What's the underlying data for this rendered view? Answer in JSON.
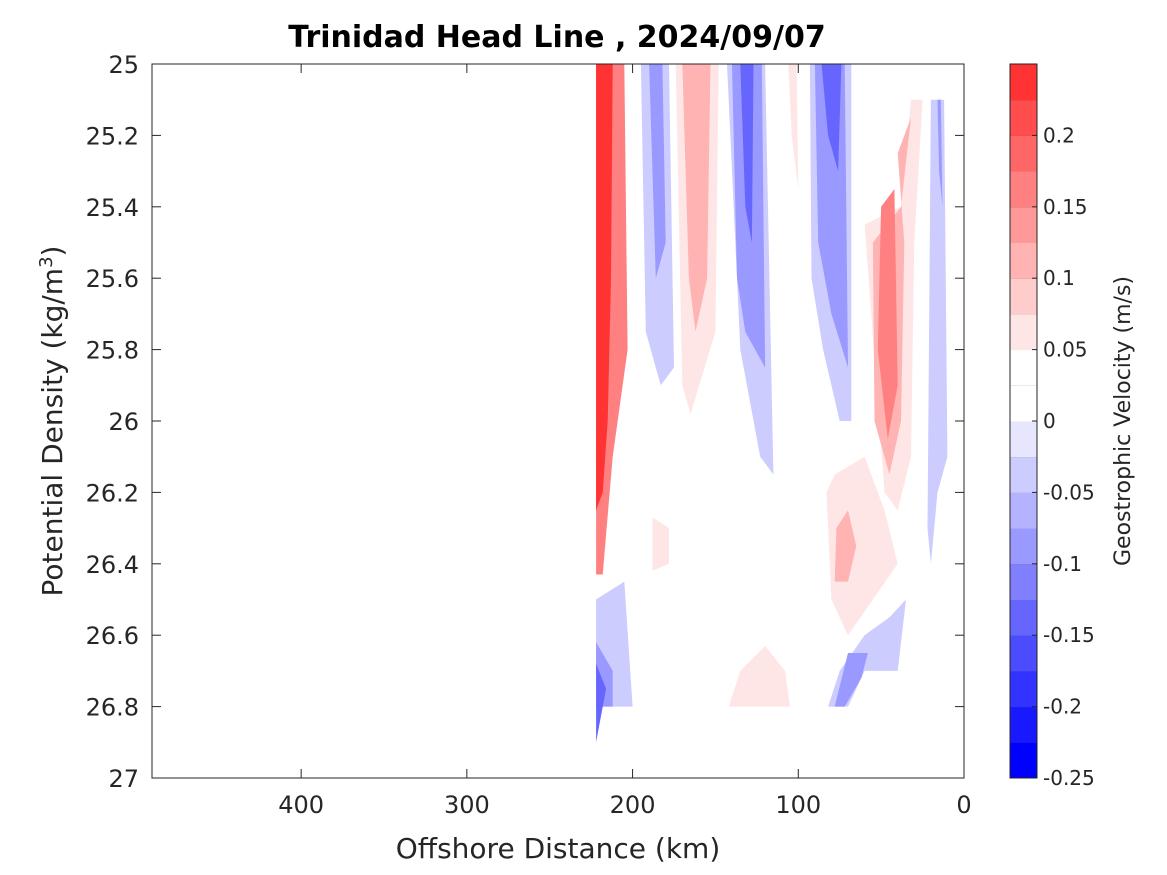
{
  "chart_data": {
    "type": "heatmap",
    "subtype": "filled-contour",
    "title": "Trinidad Head Line , 2024/09/07",
    "xlabel": "Offshore Distance (km)",
    "ylabel_main": "Potential Density (kg/m",
    "ylabel_sup": "3",
    "ylabel_close": ")",
    "x_reversed": true,
    "y_reversed": true,
    "xlim": [
      490,
      0
    ],
    "ylim": [
      25,
      27
    ],
    "xticks": [
      400,
      300,
      200,
      100,
      0
    ],
    "yticks": [
      25,
      25.2,
      25.4,
      25.6,
      25.8,
      26,
      26.2,
      26.4,
      26.6,
      26.8,
      27
    ],
    "colorbar": {
      "title": "Geostrophic Velocity (m/s)",
      "range": [
        -0.25,
        0.25
      ],
      "levels": [
        -0.25,
        -0.225,
        -0.2,
        -0.175,
        -0.15,
        -0.125,
        -0.1,
        -0.075,
        -0.05,
        -0.025,
        0,
        0.025,
        0.05,
        0.075,
        0.1,
        0.125,
        0.15,
        0.175,
        0.2,
        0.225,
        0.25
      ],
      "ticks": [
        0.2,
        0.15,
        0.1,
        0.05,
        0,
        -0.05,
        -0.1,
        -0.15,
        -0.2,
        -0.25
      ],
      "tick_labels": [
        "0.2",
        "0.15",
        "0.1",
        "0.05",
        "0",
        "-0.05",
        "-0.1",
        "-0.15",
        "-0.2",
        "-0.25"
      ],
      "colors": [
        "#0000ff",
        "#1919ff",
        "#3333ff",
        "#4c4cff",
        "#6666ff",
        "#8080ff",
        "#9999ff",
        "#b3b3ff",
        "#ccccff",
        "#e6e6ff",
        "#ffffff",
        "#ffffff",
        "#ffe6e6",
        "#ffcccc",
        "#ffb3b3",
        "#ff9999",
        "#ff8080",
        "#ff6666",
        "#ff4c4c",
        "#ff3333",
        "#ff0000"
      ]
    },
    "regions": [
      {
        "name": "red-core-218km",
        "value": 0.15,
        "points": [
          [
            222,
            25
          ],
          [
            205,
            25
          ],
          [
            203,
            25.8
          ],
          [
            212,
            26.1
          ],
          [
            218,
            26.43
          ],
          [
            222,
            26.43
          ]
        ]
      },
      {
        "name": "red-core-218km-inner",
        "value": 0.225,
        "points": [
          [
            222,
            25
          ],
          [
            212,
            25
          ],
          [
            213,
            25.6
          ],
          [
            215,
            26.0
          ],
          [
            218,
            26.2
          ],
          [
            222,
            26.25
          ]
        ]
      },
      {
        "name": "blue-195-175",
        "value": -0.05,
        "points": [
          [
            195,
            25
          ],
          [
            178,
            25
          ],
          [
            175,
            25.85
          ],
          [
            183,
            25.9
          ],
          [
            192,
            25.75
          ]
        ]
      },
      {
        "name": "blue-195-175-inner",
        "value": -0.1,
        "points": [
          [
            190,
            25
          ],
          [
            182,
            25
          ],
          [
            180,
            25.5
          ],
          [
            186,
            25.6
          ]
        ]
      },
      {
        "name": "red-175-145",
        "value": 0.05,
        "points": [
          [
            174,
            25
          ],
          [
            148,
            25
          ],
          [
            150,
            25.75
          ],
          [
            165,
            25.98
          ],
          [
            170,
            25.9
          ]
        ]
      },
      {
        "name": "red-175-145-inner",
        "value": 0.1,
        "points": [
          [
            170,
            25
          ],
          [
            153,
            25
          ],
          [
            155,
            25.6
          ],
          [
            162,
            25.75
          ],
          [
            166,
            25.6
          ]
        ]
      },
      {
        "name": "blue-140-120",
        "value": -0.05,
        "points": [
          [
            143,
            25
          ],
          [
            120,
            25
          ],
          [
            115,
            26.15
          ],
          [
            123,
            26.1
          ],
          [
            135,
            25.8
          ]
        ]
      },
      {
        "name": "blue-140-120-inner",
        "value": -0.1,
        "points": [
          [
            140,
            25
          ],
          [
            122,
            25
          ],
          [
            120,
            25.85
          ],
          [
            132,
            25.75
          ],
          [
            137,
            25.6
          ]
        ]
      },
      {
        "name": "blue-140-120-core",
        "value": -0.15,
        "points": [
          [
            135,
            25
          ],
          [
            127,
            25
          ],
          [
            128,
            25.5
          ],
          [
            132,
            25.4
          ]
        ]
      },
      {
        "name": "red-104km",
        "value": 0.05,
        "points": [
          [
            106,
            25
          ],
          [
            101,
            25
          ],
          [
            100,
            25.35
          ],
          [
            104,
            25.2
          ]
        ]
      },
      {
        "name": "blue-90-68",
        "value": -0.05,
        "points": [
          [
            93,
            25
          ],
          [
            68,
            25
          ],
          [
            68,
            26
          ],
          [
            75,
            26
          ],
          [
            85,
            25.8
          ],
          [
            92,
            25.6
          ]
        ]
      },
      {
        "name": "blue-90-68-inner",
        "value": -0.1,
        "points": [
          [
            90,
            25
          ],
          [
            72,
            25
          ],
          [
            70,
            25.85
          ],
          [
            80,
            25.7
          ],
          [
            88,
            25.5
          ]
        ]
      },
      {
        "name": "blue-90-68-core",
        "value": -0.15,
        "points": [
          [
            86,
            25
          ],
          [
            74,
            25
          ],
          [
            76,
            25.3
          ],
          [
            82,
            25.2
          ]
        ]
      },
      {
        "name": "red-30-60",
        "value": 0.05,
        "points": [
          [
            32,
            25.1
          ],
          [
            25,
            25.1
          ],
          [
            30,
            25.5
          ],
          [
            32,
            26.1
          ],
          [
            40,
            26.25
          ],
          [
            48,
            26.2
          ],
          [
            60,
            25.45
          ],
          [
            38,
            25.4
          ]
        ]
      },
      {
        "name": "red-30-60-inner",
        "value": 0.1,
        "points": [
          [
            32,
            25.15
          ],
          [
            38,
            25.4
          ],
          [
            55,
            25.5
          ],
          [
            54,
            26
          ],
          [
            45,
            26.15
          ],
          [
            38,
            26
          ],
          [
            36,
            25.5
          ],
          [
            40,
            25.25
          ]
        ]
      },
      {
        "name": "red-45-inner-core",
        "value": 0.15,
        "points": [
          [
            50,
            25.4
          ],
          [
            42,
            25.35
          ],
          [
            40,
            25.9
          ],
          [
            46,
            26.05
          ],
          [
            52,
            25.8
          ]
        ]
      },
      {
        "name": "blue-18-8",
        "value": -0.05,
        "points": [
          [
            20,
            25.1
          ],
          [
            12,
            25.1
          ],
          [
            10,
            26.1
          ],
          [
            16,
            26.2
          ],
          [
            20,
            26.4
          ],
          [
            22,
            26.3
          ]
        ]
      },
      {
        "name": "blue-18-8-inner",
        "value": -0.1,
        "points": [
          [
            16,
            25.1
          ],
          [
            14,
            25.1
          ],
          [
            13,
            25.4
          ],
          [
            15,
            25.3
          ]
        ]
      },
      {
        "name": "red-82-38-lower",
        "value": 0.05,
        "points": [
          [
            80,
            26.5
          ],
          [
            83,
            26.2
          ],
          [
            78,
            26.15
          ],
          [
            60,
            26.1
          ],
          [
            48,
            26.25
          ],
          [
            40,
            26.4
          ],
          [
            55,
            26.5
          ],
          [
            70,
            26.6
          ]
        ]
      },
      {
        "name": "red-82-38-lower-inner",
        "value": 0.1,
        "points": [
          [
            77,
            26.3
          ],
          [
            78,
            26.45
          ],
          [
            70,
            26.45
          ],
          [
            65,
            26.35
          ],
          [
            70,
            26.25
          ]
        ]
      },
      {
        "name": "red-190-180-blob",
        "value": 0.05,
        "points": [
          [
            188,
            26.27
          ],
          [
            178,
            26.3
          ],
          [
            178,
            26.4
          ],
          [
            188,
            26.42
          ]
        ]
      },
      {
        "name": "red-130-105-lower",
        "value": 0.05,
        "points": [
          [
            142,
            26.8
          ],
          [
            105,
            26.8
          ],
          [
            108,
            26.7
          ],
          [
            120,
            26.63
          ],
          [
            135,
            26.7
          ]
        ]
      },
      {
        "name": "blue-222-205-lower",
        "value": -0.05,
        "points": [
          [
            222,
            26.5
          ],
          [
            205,
            26.45
          ],
          [
            200,
            26.8
          ],
          [
            222,
            26.8
          ]
        ]
      },
      {
        "name": "blue-222-205-lower-inner",
        "value": -0.1,
        "points": [
          [
            222,
            26.62
          ],
          [
            212,
            26.7
          ],
          [
            212,
            26.8
          ],
          [
            222,
            26.8
          ]
        ]
      },
      {
        "name": "blue-222-205-lower-core",
        "value": -0.15,
        "points": [
          [
            222,
            26.68
          ],
          [
            216,
            26.75
          ],
          [
            220,
            26.85
          ],
          [
            222,
            26.9
          ]
        ]
      },
      {
        "name": "blue-85-35-lower",
        "value": -0.05,
        "points": [
          [
            82,
            26.8
          ],
          [
            70,
            26.8
          ],
          [
            60,
            26.7
          ],
          [
            40,
            26.7
          ],
          [
            35,
            26.5
          ],
          [
            45,
            26.55
          ],
          [
            60,
            26.6
          ],
          [
            75,
            26.7
          ]
        ]
      },
      {
        "name": "blue-85-35-lower-inner",
        "value": -0.1,
        "points": [
          [
            78,
            26.8
          ],
          [
            72,
            26.8
          ],
          [
            62,
            26.72
          ],
          [
            58,
            26.65
          ],
          [
            70,
            26.65
          ]
        ]
      }
    ]
  }
}
